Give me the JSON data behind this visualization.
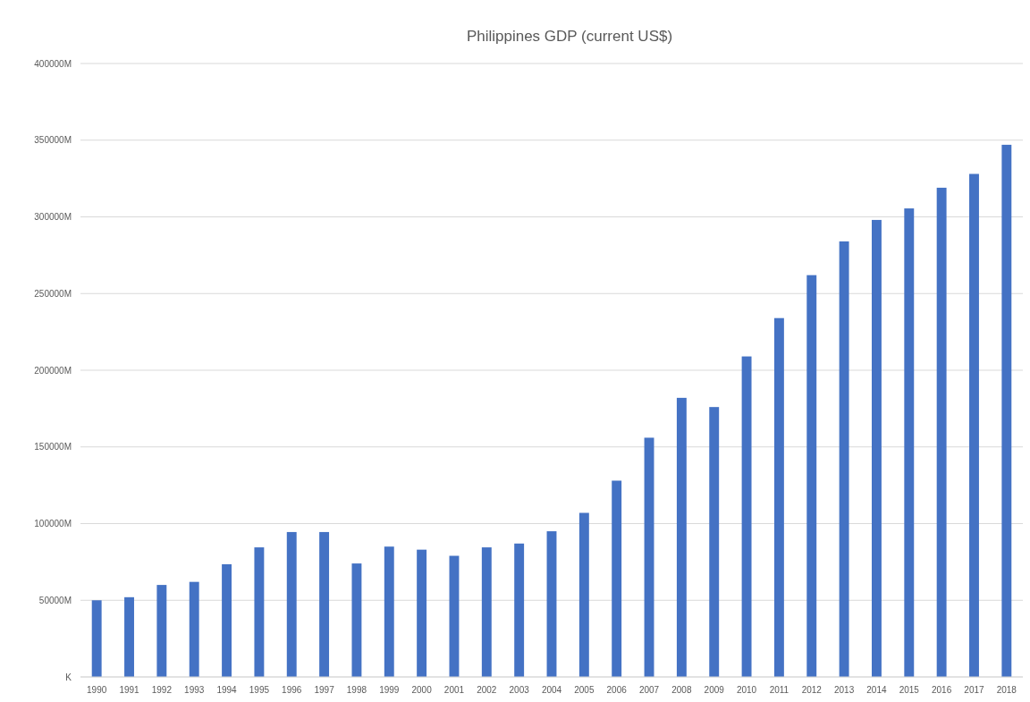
{
  "chart_data": {
    "type": "bar",
    "title": "Philippines GDP (current US$)",
    "categories": [
      "1990",
      "1991",
      "1992",
      "1993",
      "1994",
      "1995",
      "1996",
      "1997",
      "1998",
      "1999",
      "2000",
      "2001",
      "2002",
      "2003",
      "2004",
      "2005",
      "2006",
      "2007",
      "2008",
      "2009",
      "2010",
      "2011",
      "2012",
      "2013",
      "2014",
      "2015",
      "2016",
      "2017",
      "2018"
    ],
    "values": [
      50000,
      52000,
      60000,
      62000,
      73500,
      84500,
      94500,
      94500,
      74000,
      85000,
      83000,
      79000,
      84500,
      87000,
      95000,
      107000,
      128000,
      156000,
      182000,
      176000,
      209000,
      234000,
      262000,
      284000,
      298000,
      305500,
      319000,
      328000,
      347000
    ],
    "color": "#4472c4",
    "ylim": [
      0,
      400000
    ],
    "yticks": [
      {
        "value": 0,
        "label": "K"
      },
      {
        "value": 50000,
        "label": "50000M"
      },
      {
        "value": 100000,
        "label": "100000M"
      },
      {
        "value": 150000,
        "label": "150000M"
      },
      {
        "value": 200000,
        "label": "200000M"
      },
      {
        "value": 250000,
        "label": "250000M"
      },
      {
        "value": 300000,
        "label": "300000M"
      },
      {
        "value": 350000,
        "label": "350000M"
      },
      {
        "value": 400000,
        "label": "400000M"
      }
    ],
    "grid": "y"
  }
}
